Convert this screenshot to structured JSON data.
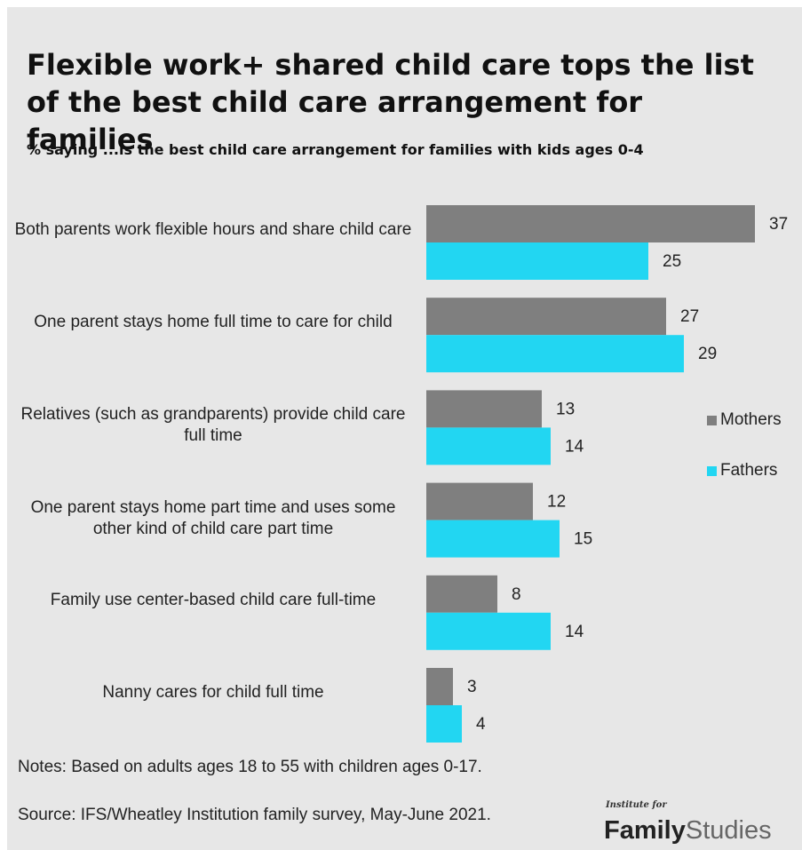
{
  "title": "Flexible work+ shared child care tops the list of the best child care arrangement for families",
  "subtitle": "% saying ...is the best child care arrangement for families with kids ages 0-4",
  "chart_data": {
    "type": "bar",
    "orientation": "horizontal",
    "categories": [
      "Both parents work flexible hours and share child care",
      "One parent stays home full time to care for child",
      "Relatives (such as grandparents) provide child care full time",
      "One parent stays home part time and uses some other kind of child care part time",
      "Family use center-based child care full-time",
      "Nanny cares for child full time"
    ],
    "series": [
      {
        "name": "Mothers",
        "color": "#7f7f7f",
        "values": [
          37,
          27,
          13,
          12,
          8,
          3
        ]
      },
      {
        "name": "Fathers",
        "color": "#22d6f2",
        "values": [
          25,
          29,
          14,
          15,
          14,
          4
        ]
      }
    ],
    "xlim": [
      0,
      40
    ],
    "grid": false,
    "legend": "right",
    "data_labels": true
  },
  "notes": "Notes: Based on adults ages 18 to 55 with children ages 0-17.",
  "source": "Source: IFS/Wheatley Institution family survey, May-June 2021.",
  "logo": {
    "top": "Institute for",
    "bold": "Family",
    "light": "Studies"
  }
}
